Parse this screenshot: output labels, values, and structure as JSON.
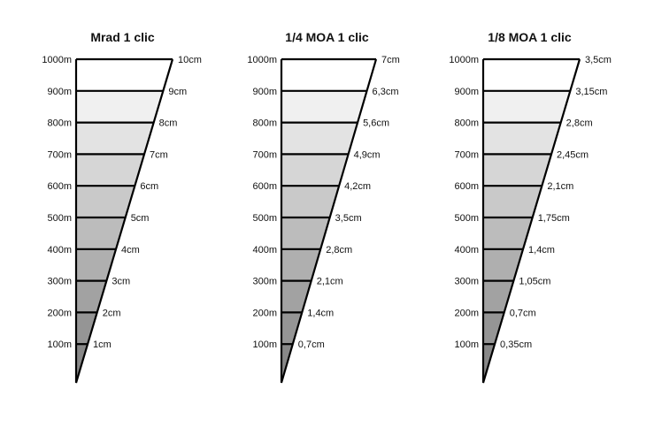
{
  "panels": [
    {
      "title": "Mrad 1 clic",
      "distances": [
        "1000m",
        "900m",
        "800m",
        "700m",
        "600m",
        "500m",
        "400m",
        "300m",
        "200m",
        "100m"
      ],
      "values": [
        "10cm",
        "9cm",
        "8cm",
        "7cm",
        "6cm",
        "5cm",
        "4cm",
        "3cm",
        "2cm",
        "1cm"
      ]
    },
    {
      "title": "1/4 MOA 1 clic",
      "distances": [
        "1000m",
        "900m",
        "800m",
        "700m",
        "600m",
        "500m",
        "400m",
        "300m",
        "200m",
        "100m"
      ],
      "values": [
        "7cm",
        "6,3cm",
        "5,6cm",
        "4,9cm",
        "4,2cm",
        "3,5cm",
        "2,8cm",
        "2,1cm",
        "1,4cm",
        "0,7cm"
      ]
    },
    {
      "title": "1/8 MOA 1 clic",
      "distances": [
        "1000m",
        "900m",
        "800m",
        "700m",
        "600m",
        "500m",
        "400m",
        "300m",
        "200m",
        "100m"
      ],
      "values": [
        "3,5cm",
        "3,15cm",
        "2,8cm",
        "2,45cm",
        "2,1cm",
        "1,75cm",
        "1,4cm",
        "1,05cm",
        "0,7cm",
        "0,35cm"
      ]
    }
  ],
  "colors": {
    "band_light": "#f0f0f0",
    "band_dark": "#888888",
    "top_band": "#ffffff",
    "stroke": "#000000"
  }
}
